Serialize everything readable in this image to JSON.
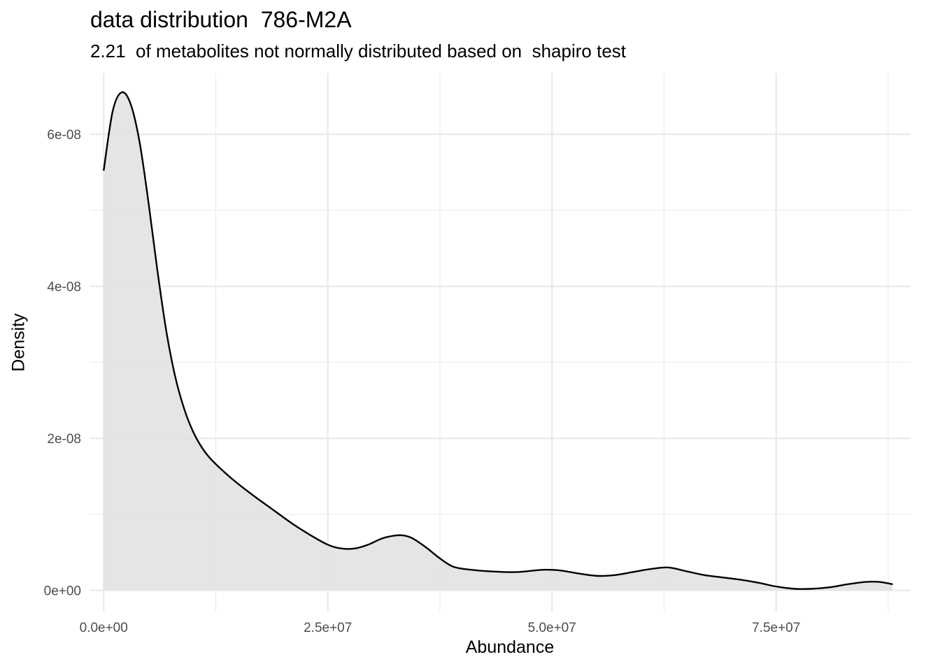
{
  "chart_data": {
    "type": "area",
    "title": "data distribution  786-M2A",
    "subtitle": "2.21  of metabolites not normally distributed based on  shapiro test",
    "xlabel": "Abundance",
    "ylabel": "Density",
    "xlim": [
      -1500000,
      90000000
    ],
    "ylim": [
      -2.8e-09,
      6.8e-08
    ],
    "x_ticks": [
      0,
      25000000,
      50000000,
      75000000
    ],
    "x_tick_labels": [
      "0.0e+00",
      "2.5e+07",
      "5.0e+07",
      "7.5e+07"
    ],
    "x_minor_ticks": [
      12500000,
      37500000,
      62500000,
      87500000
    ],
    "y_ticks": [
      0,
      2e-08,
      4e-08,
      6e-08
    ],
    "y_tick_labels": [
      "0e+00",
      "2e-08",
      "4e-08",
      "6e-08"
    ],
    "y_minor_ticks": [
      1e-08,
      3e-08,
      5e-08
    ],
    "grid": true,
    "fill_color": "#e2e2e2",
    "line_color": "#000000",
    "grid_color": "#ebebeb",
    "series": [
      {
        "x": [
          0,
          1000000,
          2000000,
          3000000,
          4000000,
          5000000,
          6000000,
          7000000,
          8000000,
          9000000,
          10000000,
          11000000,
          12000000,
          13500000,
          15000000,
          17000000,
          19000000,
          21000000,
          23000000,
          25000000,
          26500000,
          28000000,
          29500000,
          31000000,
          32500000,
          33500000,
          34500000,
          36000000,
          37500000,
          39000000,
          41000000,
          43000000,
          46000000,
          49000000,
          51000000,
          53000000,
          55000000,
          57000000,
          59000000,
          61000000,
          63000000,
          65000000,
          67000000,
          69000000,
          71000000,
          73000000,
          75000000,
          77000000,
          79000000,
          81000000,
          83000000,
          85000000,
          86500000,
          88000000
        ],
        "y": [
          5.52e-08,
          6.3e-08,
          6.55e-08,
          6.4e-08,
          5.9e-08,
          5.1e-08,
          4.2e-08,
          3.4e-08,
          2.8e-08,
          2.38e-08,
          2.08e-08,
          1.87e-08,
          1.72e-08,
          1.55e-08,
          1.4e-08,
          1.22e-08,
          1.05e-08,
          8.8e-09,
          7.3e-09,
          6e-09,
          5.5e-09,
          5.5e-09,
          6e-09,
          6.8e-09,
          7.2e-09,
          7.2e-09,
          6.8e-09,
          5.6e-09,
          4.2e-09,
          3.1e-09,
          2.7e-09,
          2.5e-09,
          2.4e-09,
          2.7e-09,
          2.6e-09,
          2.2e-09,
          1.9e-09,
          2e-09,
          2.4e-09,
          2.8e-09,
          3e-09,
          2.5e-09,
          2e-09,
          1.7e-09,
          1.4e-09,
          1e-09,
          5e-10,
          2e-10,
          2e-10,
          4e-10,
          8e-10,
          1.1e-09,
          1.1e-09,
          8e-10
        ]
      }
    ]
  }
}
